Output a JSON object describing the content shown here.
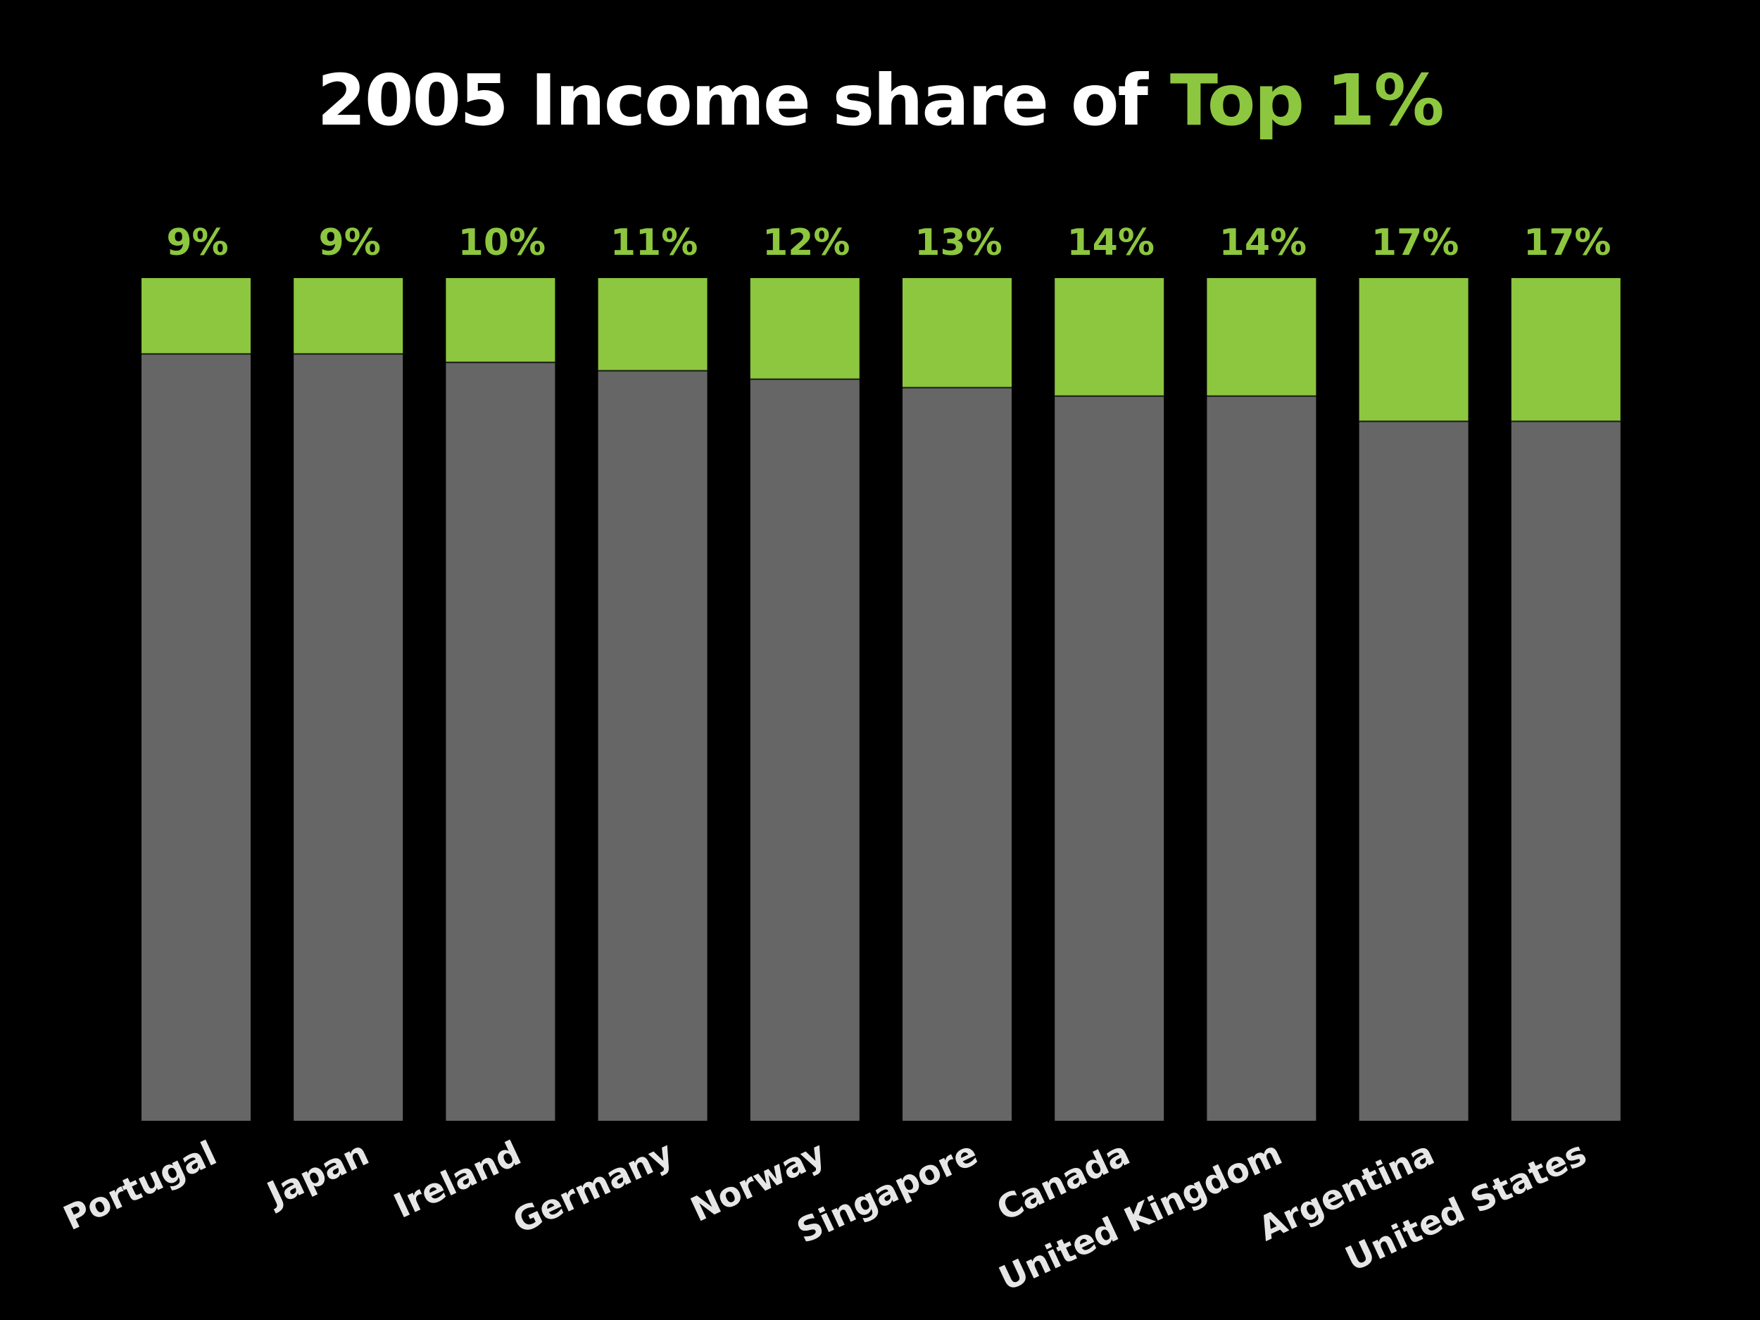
{
  "chart_data": {
    "type": "bar",
    "stacked": true,
    "title": "2005 Income share of Top 1%",
    "title_parts": {
      "main": "2005 Income share of ",
      "accent": "Top 1%"
    },
    "categories": [
      "Portugal",
      "Japan",
      "Ireland",
      "Germany",
      "Norway",
      "Singapore",
      "Canada",
      "United Kingdom",
      "Argentina",
      "United States"
    ],
    "values": [
      9,
      9,
      10,
      11,
      12,
      13,
      14,
      14,
      17,
      17
    ],
    "value_labels": [
      "9%",
      "9%",
      "10%",
      "11%",
      "12%",
      "13%",
      "14%",
      "14%",
      "17%",
      "17%"
    ],
    "ylim": [
      0,
      100
    ],
    "grid": false,
    "xlabel": "",
    "ylabel": "",
    "colors": {
      "background": "#000000",
      "top_share": "#8dc63f",
      "remainder": "#666666",
      "title": "#ffffff",
      "category_label": "#e6e6e6"
    }
  }
}
